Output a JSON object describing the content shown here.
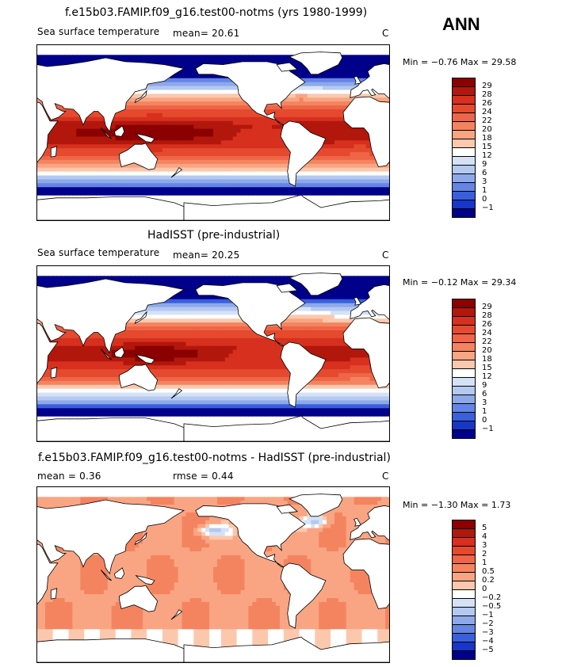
{
  "season": "ANN",
  "panels": [
    {
      "title": "f.e15b03.FAMIP.f09_g16.test00-notms (yrs 1980-1999)",
      "variable": "Sea surface temperature",
      "stat1": "mean=  20.61",
      "stat2": "",
      "units": "C",
      "minmax": "Min =  −0.76 Max =  29.58",
      "kind": "abs",
      "colorbar": {
        "labels": [
          "29",
          "28",
          "26",
          "24",
          "22",
          "20",
          "18",
          "15",
          "12",
          "9",
          "6",
          "3",
          "1",
          "0",
          "−1"
        ],
        "colors": [
          "#8b0000",
          "#b2170c",
          "#d7301f",
          "#e54a2e",
          "#ef6548",
          "#f4845f",
          "#f9a583",
          "#fcc8ad",
          "#ffffff",
          "#d5e2f6",
          "#b4c9f0",
          "#8ea9ea",
          "#6485e4",
          "#3a5fdc",
          "#1836c8",
          "#00008b"
        ]
      }
    },
    {
      "title": "HadISST (pre-industrial)",
      "variable": "Sea surface temperature",
      "stat1": "mean=  20.25",
      "stat2": "",
      "units": "C",
      "minmax": "Min =  −0.12 Max =  29.34",
      "kind": "abs",
      "colorbar": {
        "labels": [
          "29",
          "28",
          "26",
          "24",
          "22",
          "20",
          "18",
          "15",
          "12",
          "9",
          "6",
          "3",
          "1",
          "0",
          "−1"
        ],
        "colors": [
          "#8b0000",
          "#b2170c",
          "#d7301f",
          "#e54a2e",
          "#ef6548",
          "#f4845f",
          "#f9a583",
          "#fcc8ad",
          "#ffffff",
          "#d5e2f6",
          "#b4c9f0",
          "#8ea9ea",
          "#6485e4",
          "#3a5fdc",
          "#1836c8",
          "#00008b"
        ]
      }
    },
    {
      "title": "f.e15b03.FAMIP.f09_g16.test00-notms - HadISST (pre-industrial)",
      "variable": "",
      "stat1": "mean =   0.36",
      "stat2": "rmse =   0.44",
      "units": "C",
      "minmax": "Min =  −1.30 Max =   1.73",
      "kind": "diff",
      "colorbar": {
        "labels": [
          "5",
          "4",
          "3",
          "2",
          "1",
          "0.5",
          "0.2",
          "0",
          "−0.2",
          "−0.5",
          "−1",
          "−2",
          "−3",
          "−4",
          "−5"
        ],
        "colors": [
          "#8b0000",
          "#b2170c",
          "#d7301f",
          "#e54a2e",
          "#ef6548",
          "#f4845f",
          "#f9a583",
          "#fcc8ad",
          "#ffffff",
          "#d5e2f6",
          "#b4c9f0",
          "#8ea9ea",
          "#6485e4",
          "#3a5fdc",
          "#1836c8",
          "#00008b"
        ]
      }
    }
  ]
}
